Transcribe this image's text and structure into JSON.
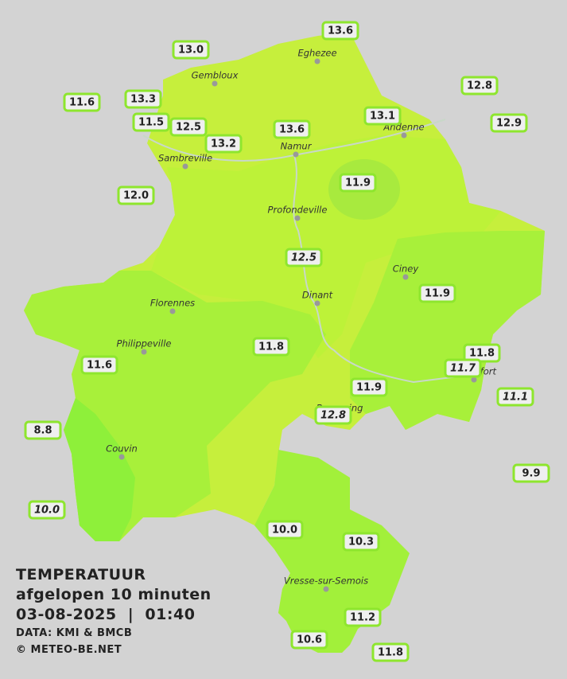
{
  "title": "TEMPERATUUR",
  "subtitle": "afgelopen 10 minuten",
  "datetime": "03-08-2025  |  01:40",
  "source": "DATA: KMI & BMCB",
  "copyright": "© METEO-BE.NET",
  "cities": [
    "Eghezee",
    "Gembloux",
    "Andenne",
    "Namur",
    "Sambreville",
    "Profondeville",
    "Ciney",
    "Dinant",
    "Florennes",
    "Philippeville",
    "Rochefort",
    "Beauraing",
    "Couvin",
    "Vresse-sur-Semois"
  ],
  "stations": [
    "13.6",
    "13.0",
    "12.8",
    "11.6",
    "13.3",
    "13.1",
    "11.5",
    "12.5",
    "13.6",
    "13.2",
    "12.9",
    "12.0",
    "11.9",
    "12.5",
    "11.9",
    "11.8",
    "11.8",
    "11.7",
    "11.6",
    "11.9",
    "11.1",
    "12.8",
    "8.8",
    "9.9",
    "10.0",
    "10.0",
    "10.3",
    "11.2",
    "10.6",
    "11.8"
  ]
}
